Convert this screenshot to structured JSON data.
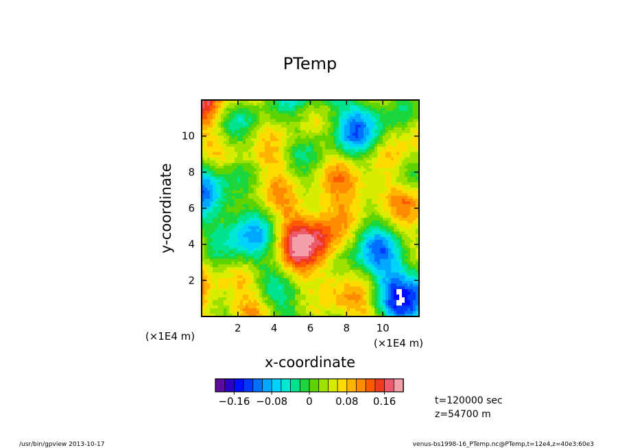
{
  "chart_data": {
    "type": "heatmap",
    "title": "PTemp",
    "xlabel": "x-coordinate",
    "ylabel": "y-coordinate",
    "x_scale_note": "(×1E4 m)",
    "y_scale_note": "(×1E4 m)",
    "xlim": [
      0,
      12
    ],
    "ylim": [
      0,
      12
    ],
    "x_ticks": [
      2,
      4,
      6,
      8,
      10
    ],
    "y_ticks": [
      2,
      4,
      6,
      8,
      10
    ],
    "x_tick_labels": [
      "2",
      "4",
      "6",
      "8",
      "10"
    ],
    "y_tick_labels": [
      "2",
      "4",
      "6",
      "8",
      "10"
    ],
    "colorbar": {
      "min": -0.2,
      "max": 0.2,
      "ticks": [
        -0.16,
        -0.08,
        0,
        0.08,
        0.16
      ],
      "tick_labels": [
        "−0.16",
        "−0.08",
        "0",
        "0.08",
        "0.16"
      ]
    },
    "annotations": {
      "time": "t=120000 sec",
      "height": "z=54700 m"
    },
    "footer_left": "/usr/bin/gpview   2013-10-17",
    "footer_right": "venus-bs1998-16_PTemp.nc@PTemp,t=12e4,z=40e3:60e3",
    "grid": false,
    "legend": "bottom"
  }
}
